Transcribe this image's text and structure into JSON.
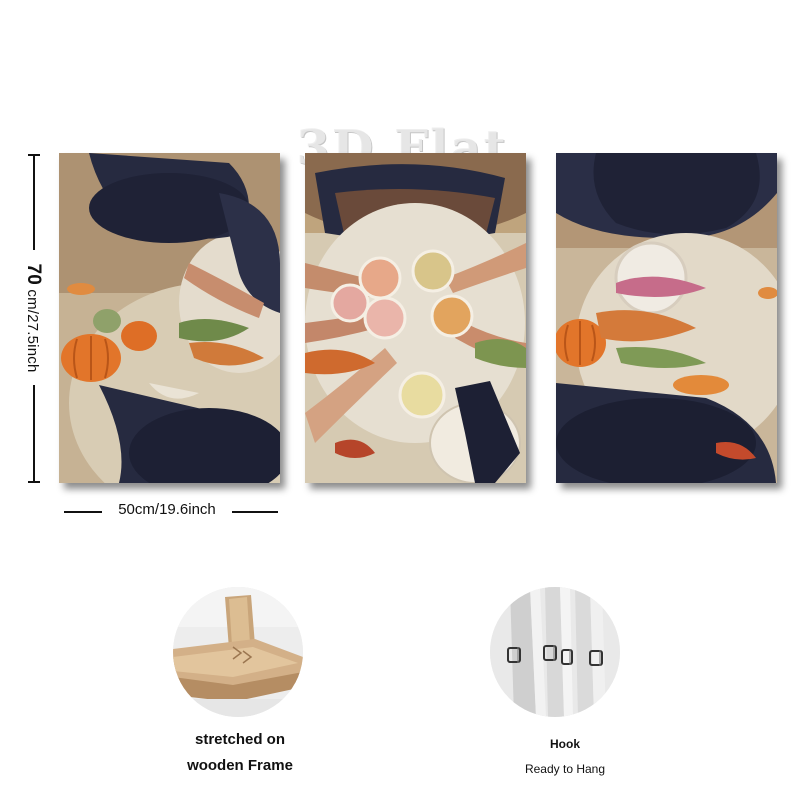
{
  "watermark": "3D Flat",
  "dimensions": {
    "height_value": "70",
    "height_rest": "cm/27.5inch",
    "width_label": "50cm/19.6inch"
  },
  "panels": [
    "left-panel",
    "center-panel",
    "right-panel"
  ],
  "features": {
    "frame_line1": "stretched on",
    "frame_line2": "wooden Frame",
    "hook_line1": "Hook",
    "hook_line2": "Ready to Hang"
  },
  "colors": {
    "hat": "#262a40",
    "pumpkin": "#e2752a",
    "table": "#d9cdb4",
    "background_wall": "#b9a07c"
  }
}
